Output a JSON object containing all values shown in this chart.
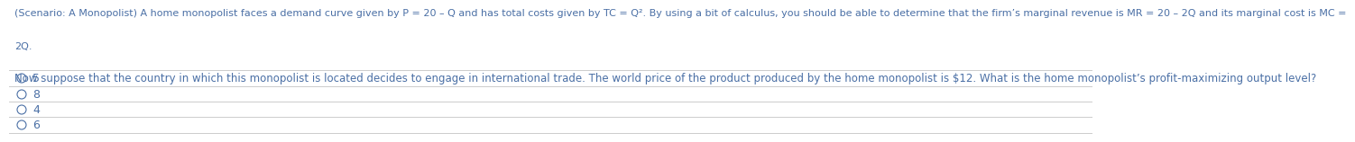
{
  "background_color": "#ffffff",
  "text_color": "#4a6fa5",
  "line_color": "#cccccc",
  "header_text_line1": "(Scenario: A Monopolist) A home monopolist faces a demand curve given by P = 20 – Q and has total costs given by TC = Q². By using a bit of calculus, you should be able to determine that the firm’s marginal revenue is MR = 20 – 2Q and its marginal cost is MC =",
  "header_text_line2": "2Q.",
  "question_text": "Now suppose that the country in which this monopolist is located decides to engage in international trade. The world price of the product produced by the home monopolist is $12. What is the home monopolist’s profit-maximizing output level?",
  "options": [
    "5",
    "8",
    "4",
    "6"
  ],
  "font_size_header": 8.0,
  "font_size_question": 8.5,
  "font_size_options": 9.0
}
